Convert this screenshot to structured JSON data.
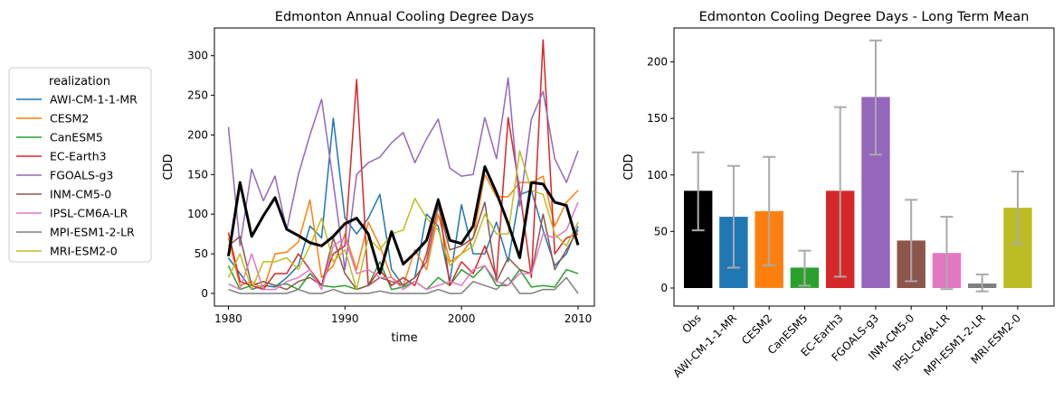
{
  "chart_data": [
    {
      "type": "line",
      "title": "Edmonton Annual Cooling Degree Days",
      "xlabel": "time",
      "ylabel": "CDD",
      "xlim": [
        1978.8,
        2011.4
      ],
      "ylim": [
        -16,
        335
      ],
      "xticks": [
        1980,
        1990,
        2000,
        2010
      ],
      "yticks": [
        0,
        50,
        100,
        150,
        200,
        250,
        300
      ],
      "grid": false,
      "legend": {
        "title": "realization",
        "placement": "outside-left"
      },
      "x": [
        1980,
        1981,
        1982,
        1983,
        1984,
        1985,
        1986,
        1987,
        1988,
        1989,
        1990,
        1991,
        1992,
        1993,
        1994,
        1995,
        1996,
        1997,
        1998,
        1999,
        2000,
        2001,
        2002,
        2003,
        2004,
        2005,
        2006,
        2007,
        2008,
        2009,
        2010
      ],
      "series": [
        {
          "name": "AWI-CM-1-1-MR",
          "color": "#1f77b4",
          "values": [
            45,
            25,
            5,
            10,
            8,
            20,
            35,
            85,
            70,
            221,
            95,
            75,
            95,
            125,
            30,
            10,
            20,
            100,
            85,
            15,
            112,
            50,
            50,
            90,
            40,
            125,
            130,
            80,
            35,
            50,
            85
          ]
        },
        {
          "name": "CESM2",
          "color": "#ff7f0e",
          "values": [
            70,
            10,
            15,
            5,
            50,
            52,
            65,
            118,
            20,
            35,
            75,
            30,
            90,
            60,
            20,
            10,
            55,
            30,
            100,
            40,
            50,
            70,
            150,
            122,
            122,
            140,
            140,
            148,
            85,
            115,
            130
          ]
        },
        {
          "name": "CanESM5",
          "color": "#2ca02c",
          "values": [
            35,
            5,
            10,
            15,
            10,
            12,
            5,
            25,
            10,
            8,
            10,
            5,
            10,
            40,
            5,
            8,
            15,
            5,
            20,
            10,
            30,
            20,
            35,
            10,
            10,
            30,
            8,
            10,
            8,
            30,
            25
          ]
        },
        {
          "name": "EC-Earth3",
          "color": "#d62728",
          "values": [
            77,
            15,
            10,
            5,
            25,
            25,
            50,
            30,
            10,
            50,
            60,
            270,
            10,
            30,
            10,
            20,
            10,
            50,
            120,
            10,
            40,
            25,
            60,
            20,
            222,
            130,
            20,
            320,
            50,
            70,
            75
          ]
        },
        {
          "name": "FGOALS-g3",
          "color": "#9467bd",
          "values": [
            210,
            60,
            157,
            117,
            148,
            80,
            150,
            200,
            245,
            140,
            30,
            150,
            165,
            172,
            190,
            203,
            165,
            195,
            220,
            158,
            148,
            150,
            222,
            170,
            272,
            110,
            220,
            255,
            170,
            140,
            180
          ]
        },
        {
          "name": "INM-CM5-0",
          "color": "#8c564b",
          "values": [
            60,
            72,
            10,
            15,
            10,
            5,
            15,
            20,
            10,
            70,
            25,
            5,
            10,
            20,
            15,
            10,
            20,
            40,
            110,
            55,
            60,
            70,
            115,
            15,
            45,
            30,
            25,
            100,
            30,
            55,
            80
          ]
        },
        {
          "name": "IPSL-CM6A-LR",
          "color": "#e377c2",
          "values": [
            12,
            5,
            50,
            5,
            5,
            15,
            20,
            30,
            5,
            60,
            70,
            25,
            30,
            20,
            20,
            5,
            15,
            5,
            10,
            15,
            10,
            30,
            35,
            15,
            10,
            25,
            25,
            75,
            70,
            80,
            115
          ]
        },
        {
          "name": "MPI-ESM1-2-LR",
          "color": "#7f7f7f",
          "values": [
            5,
            0,
            0,
            0,
            0,
            0,
            5,
            0,
            0,
            5,
            0,
            0,
            0,
            3,
            0,
            0,
            0,
            0,
            5,
            0,
            0,
            15,
            10,
            5,
            20,
            0,
            0,
            5,
            5,
            20,
            0
          ]
        },
        {
          "name": "MRI-ESM2-0",
          "color": "#bcbd22",
          "values": [
            20,
            50,
            5,
            40,
            40,
            45,
            30,
            60,
            95,
            40,
            55,
            5,
            70,
            55,
            75,
            80,
            120,
            95,
            80,
            35,
            50,
            60,
            100,
            75,
            75,
            180,
            130,
            125,
            75,
            60,
            90
          ]
        },
        {
          "name": "",
          "color": "#000000",
          "values": [
            47,
            140,
            72,
            98,
            121,
            81,
            73,
            64,
            60,
            72,
            88,
            95,
            75,
            25,
            78,
            37,
            51,
            67,
            118,
            67,
            63,
            85,
            160,
            127,
            88,
            45,
            140,
            138,
            115,
            111,
            61
          ]
        }
      ]
    },
    {
      "type": "bar",
      "title": "Edmonton Cooling Degree Days - Long Term Mean",
      "xlabel": "",
      "ylabel": "CDD",
      "ylim": [
        -16,
        230
      ],
      "yticks": [
        0,
        50,
        100,
        150,
        200
      ],
      "grid": false,
      "categories": [
        "Obs",
        "AWI-CM-1-1-MR",
        "CESM2",
        "CanESM5",
        "EC-Earth3",
        "FGOALS-g3",
        "INM-CM5-0",
        "IPSL-CM6A-LR",
        "MPI-ESM1-2-LR",
        "MRI-ESM2-0"
      ],
      "values": [
        86,
        63,
        68,
        18,
        86,
        169,
        42,
        31,
        4,
        71
      ],
      "error_low": [
        51,
        18,
        20,
        2,
        10,
        118,
        6,
        -1,
        -3,
        39
      ],
      "error_high": [
        120,
        108,
        116,
        33,
        160,
        219,
        78,
        63,
        12,
        103
      ],
      "colors": [
        "#000000",
        "#1f77b4",
        "#ff7f0e",
        "#2ca02c",
        "#d62728",
        "#9467bd",
        "#8c564b",
        "#e377c2",
        "#7f7f7f",
        "#bcbd22"
      ],
      "error_color": "#aaaaaa"
    }
  ]
}
